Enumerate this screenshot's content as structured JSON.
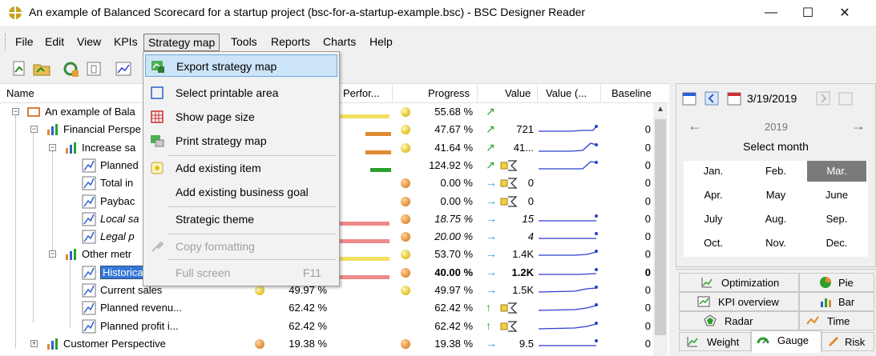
{
  "window": {
    "title": "An example of Balanced Scorecard for a startup project (bsc-for-a-startup-example.bsc) - BSC Designer Reader",
    "minimize_icon": "minimize-icon",
    "maximize_icon": "maximize-icon",
    "close_icon": "close-icon"
  },
  "menu": [
    "File",
    "Edit",
    "View",
    "KPIs",
    "Strategy map",
    "Tools",
    "Reports",
    "Charts",
    "Help"
  ],
  "toolbar_icons": [
    "new-document-icon",
    "open-folder-icon",
    "refresh-icon",
    "properties-icon",
    "chart-icon"
  ],
  "dropdown": {
    "items": [
      {
        "label": "Export strategy map",
        "icon": "export-map-icon",
        "highlighted": true,
        "disabled": false
      },
      {
        "label": "Select printable area",
        "icon": "select-area-icon",
        "disabled": false
      },
      {
        "label": "Show page size",
        "icon": "page-size-icon",
        "disabled": false
      },
      {
        "label": "Print strategy map",
        "icon": "print-icon",
        "disabled": false
      },
      {
        "label": "Add existing item",
        "icon": "add-item-icon",
        "disabled": false
      },
      {
        "label": "Add existing business goal",
        "icon": "",
        "disabled": false
      },
      {
        "label": "Strategic theme",
        "icon": "",
        "disabled": false
      },
      {
        "label": "Copy formatting",
        "icon": "brush-icon",
        "disabled": true
      },
      {
        "label": "Full screen",
        "icon": "",
        "shortcut": "F11",
        "disabled": true
      }
    ]
  },
  "grid": {
    "headers": {
      "name": "Name",
      "perf": "Perfor...",
      "progress": "Progress",
      "value": "Value",
      "value2": "Value (...",
      "baseline": "Baseline"
    },
    "rows": [
      {
        "name": "An example of Bala",
        "progress": "55.68 %",
        "value": "",
        "baseline": "",
        "dot": "y",
        "trend": "up"
      },
      {
        "name": "Financial Perspe",
        "progress": "47.67 %",
        "value": "721",
        "baseline": "0",
        "dot": "y",
        "trend": "up"
      },
      {
        "name": "Increase sa",
        "progress": "41.64 %",
        "value": "41...",
        "baseline": "0",
        "dot": "y",
        "trend": "up"
      },
      {
        "name": "Planned",
        "progress": "124.92 %",
        "value": "",
        "baseline": "0",
        "dot": "",
        "trend": "up"
      },
      {
        "name": "Total in",
        "progress": "0.00 %",
        "value": "0",
        "baseline": "0",
        "dot": "o",
        "trend": "right"
      },
      {
        "name": "Paybac",
        "progress": "0.00 %",
        "value": "0",
        "baseline": "0",
        "dot": "o",
        "trend": "right"
      },
      {
        "name": "Local sa",
        "progress": "18.75 %",
        "value": "15",
        "baseline": "0",
        "dot": "o",
        "trend": "right"
      },
      {
        "name": "Legal p",
        "progress": "20.00 %",
        "value": "4",
        "baseline": "0",
        "dot": "o",
        "trend": "right"
      },
      {
        "name": "Other metr",
        "progress": "53.70 %",
        "value": "1.4K",
        "baseline": "0",
        "dot": "y",
        "trend": "right"
      },
      {
        "name": "Historica",
        "progress": "40.00 %",
        "value": "1.2K",
        "baseline": "0",
        "dot": "o",
        "trend": "right"
      },
      {
        "name": "Current sales",
        "perf": "49.97 %",
        "progress": "49.97 %",
        "value": "1.5K",
        "baseline": "0",
        "dot": "y",
        "trend": "right"
      },
      {
        "name": "Planned revenu...",
        "perf": "62.42 %",
        "progress": "62.42 %",
        "value": "",
        "baseline": "0",
        "dot": "",
        "trend": "upgreen"
      },
      {
        "name": "Planned profit i...",
        "perf": "62.42 %",
        "progress": "62.42 %",
        "value": "",
        "baseline": "0",
        "dot": "",
        "trend": "upgreen"
      },
      {
        "name": "Customer Perspective",
        "perf": "19.38 %",
        "progress": "19.38 %",
        "value": "9.5",
        "baseline": "0",
        "dot": "o",
        "trend": "right"
      }
    ]
  },
  "calendar": {
    "date": "3/19/2019",
    "year": "2019",
    "prev": "←",
    "next": "→",
    "title": "Select month",
    "months": [
      "Jan.",
      "Feb.",
      "Mar.",
      "Apr.",
      "May",
      "June",
      "July",
      "Aug.",
      "Sep.",
      "Oct.",
      "Nov.",
      "Dec."
    ],
    "selected": "Mar."
  },
  "tabs": [
    {
      "label": "Optimization",
      "icon": "optimization-icon"
    },
    {
      "label": "Pie",
      "icon": "pie-icon"
    },
    {
      "label": "KPI overview",
      "icon": "kpi-overview-icon"
    },
    {
      "label": "Bar",
      "icon": "bar-icon"
    },
    {
      "label": "Radar",
      "icon": "radar-icon"
    },
    {
      "label": "Time",
      "icon": "time-icon"
    },
    {
      "label": "Weight",
      "icon": "weight-icon"
    },
    {
      "label": "Gauge",
      "icon": "gauge-icon",
      "active": true
    },
    {
      "label": "Risk",
      "icon": "risk-icon"
    }
  ],
  "colors": {
    "highlight": "#cce4f7",
    "selection": "#3477d8",
    "spark": "#2a3fd0",
    "orange": "#e08a30",
    "yellow": "#e0c020",
    "green": "#2aa02a",
    "red": "#e05050"
  }
}
